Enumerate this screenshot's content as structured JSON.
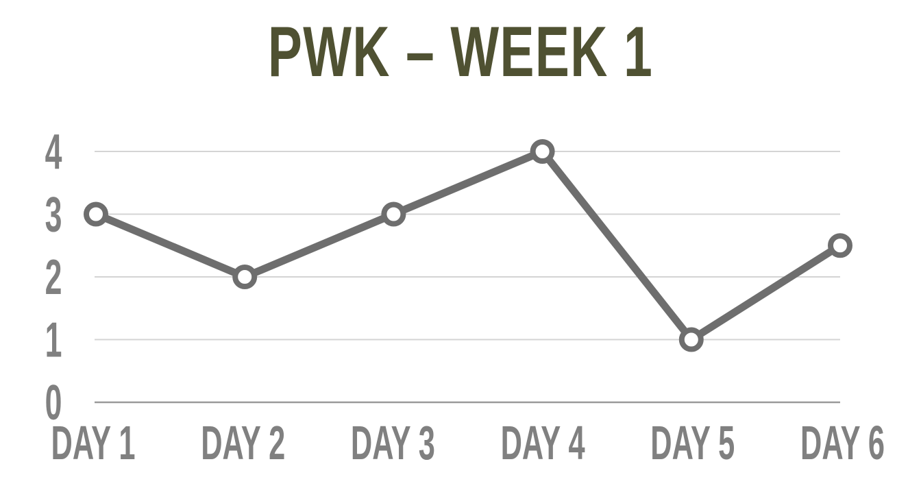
{
  "chart_data": {
    "type": "line",
    "title": "PWK – WEEK 1",
    "categories": [
      "DAY 1",
      "DAY 2",
      "DAY 3",
      "DAY 4",
      "DAY 5",
      "DAY 6"
    ],
    "series": [
      {
        "values": [
          3,
          2,
          3,
          4,
          1,
          2.5
        ]
      }
    ],
    "yticks": [
      "0",
      "1",
      "2",
      "3",
      "4"
    ],
    "ylim": [
      0,
      4
    ],
    "grid": true,
    "legend": "none",
    "colors": {
      "title": "#4f5132",
      "line": "#6e6e6e",
      "gridline": "#d4d4d4",
      "axis": "#9a9a9a",
      "tick_label": "#808080",
      "marker_fill": "#ffffff"
    }
  }
}
